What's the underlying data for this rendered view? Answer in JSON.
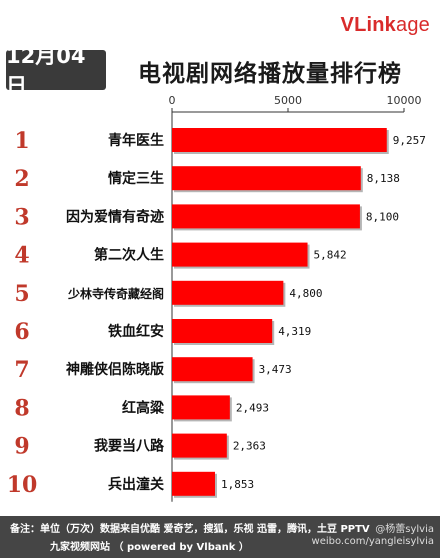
{
  "brand": {
    "logo_text_v": "V",
    "logo_text_link": "Link",
    "logo_text_age": "age"
  },
  "header": {
    "date": "12月04日",
    "title": "电视剧网络播放量排行榜"
  },
  "chart_data": {
    "type": "bar",
    "orientation": "horizontal",
    "title": "电视剧网络播放量排行榜",
    "categories": [
      "青年医生",
      "情定三生",
      "因为爱情有奇迹",
      "第二次人生",
      "少林寺传奇藏经阁",
      "铁血红安",
      "神雕侠侣陈晓版",
      "红高粱",
      "我要当八路",
      "兵出潼关"
    ],
    "ranks": [
      "1",
      "2",
      "3",
      "4",
      "5",
      "6",
      "7",
      "8",
      "9",
      "10"
    ],
    "values": [
      9257,
      8138,
      8100,
      5842,
      4800,
      4319,
      3473,
      2493,
      2363,
      1853
    ],
    "value_labels": [
      "9,257",
      "8,138",
      "8,100",
      "5,842",
      "4,800",
      "4,319",
      "3,473",
      "2,493",
      "2,363",
      "1,853"
    ],
    "xlim": [
      0,
      10000
    ],
    "xticks": [
      "0",
      "5000",
      "10000"
    ],
    "bar_color": "#ff0000",
    "rank_color": "#c0392b",
    "grid": false
  },
  "footer": {
    "line1": "备注：单位（万次）数据来自优酷 爱奇艺，搜狐，乐视  迅雷，腾讯，土豆 PPTV",
    "line2": "九家视频网站   （ powered by Vlbank ）",
    "watermark_top": "@杨蕾sylvia",
    "watermark_bottom": "weibo.com/yangleisylvia"
  },
  "colors": {
    "footer_bg": "#454545",
    "date_box_bg": "#3a3a3a",
    "logo": "#d92b2b"
  }
}
